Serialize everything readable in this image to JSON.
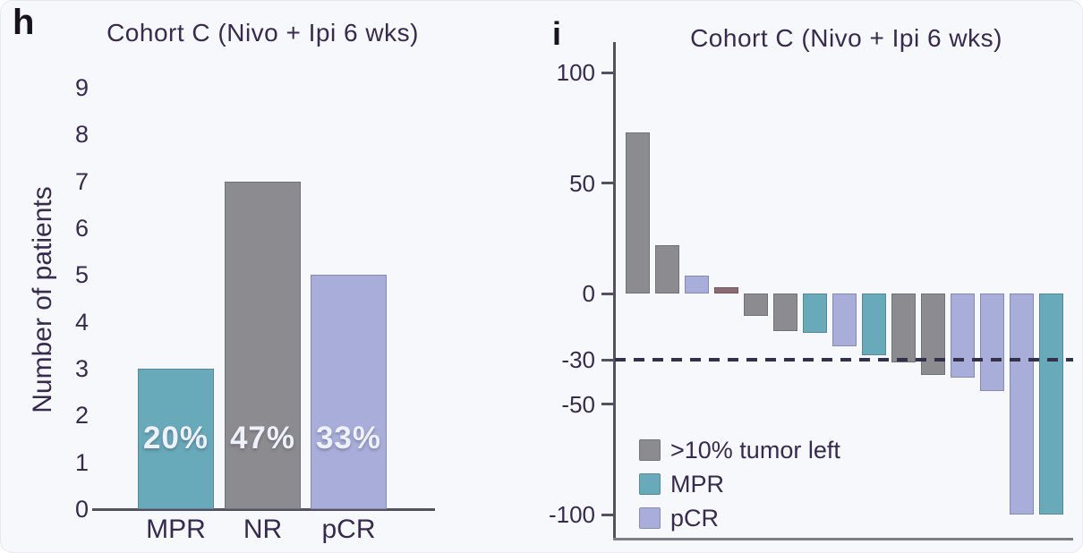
{
  "panels": {
    "h": {
      "letter": "h",
      "title": "Cohort C (Nivo + Ipi 6 wks)",
      "ylabel": "Number of patients"
    },
    "i": {
      "letter": "i",
      "title": "Cohort C (Nivo + Ipi 6 wks)"
    }
  },
  "colors": {
    "gray": "#8c8b90",
    "teal": "#68a9ba",
    "lavender": "#a8aed9",
    "mauve": "#8b6a72",
    "text_dark": "#372b4d",
    "axis": "#55505f",
    "dashed_line": "#333049",
    "percent_text": "#eef1f7",
    "background": "#f7f8fb"
  },
  "chart_data": [
    {
      "type": "bar",
      "panel": "h",
      "title": "Cohort C (Nivo + Ipi 6 wks)",
      "xlabel": "",
      "ylabel": "Number of patients",
      "categories": [
        "MPR",
        "NR",
        "pCR"
      ],
      "values": [
        3,
        7,
        5
      ],
      "bar_labels": [
        "20%",
        "47%",
        "33%"
      ],
      "bar_colors": [
        "#68a9ba",
        "#8c8b90",
        "#a8aed9"
      ],
      "yticks": [
        9,
        8,
        7,
        6,
        5,
        4,
        3,
        2,
        1,
        0
      ],
      "ylim": [
        0,
        9
      ],
      "grid": false,
      "legend_position": "none"
    },
    {
      "type": "bar",
      "subtype": "waterfall",
      "panel": "i",
      "title": "Cohort C (Nivo + Ipi 6 wks)",
      "xlabel": "",
      "ylabel": "",
      "values": [
        73,
        22,
        8,
        3,
        -10,
        -17,
        -18,
        -24,
        -28,
        -31,
        -37,
        -38,
        -44,
        -100,
        -100
      ],
      "bar_categories": [
        ">10% tumor left",
        ">10% tumor left",
        "pCR",
        null,
        ">10% tumor left",
        ">10% tumor left",
        "MPR",
        "pCR",
        "MPR",
        ">10% tumor left",
        ">10% tumor left",
        "pCR",
        "pCR",
        "pCR",
        "MPR"
      ],
      "bar_colors": [
        "#8c8b90",
        "#8c8b90",
        "#a8aed9",
        "#8b6a72",
        "#8c8b90",
        "#8c8b90",
        "#68a9ba",
        "#a8aed9",
        "#68a9ba",
        "#8c8b90",
        "#8c8b90",
        "#a8aed9",
        "#a8aed9",
        "#a8aed9",
        "#68a9ba"
      ],
      "yticks": [
        100,
        50,
        0,
        -30,
        -50,
        -100
      ],
      "ylim": [
        -100,
        112
      ],
      "reference_line": -30,
      "reference_line_style": "dashed",
      "grid": false,
      "legend_position": "lower-left",
      "legend": [
        {
          "label": ">10% tumor left",
          "color": "#8c8b90"
        },
        {
          "label": "MPR",
          "color": "#68a9ba"
        },
        {
          "label": "pCR",
          "color": "#a8aed9"
        }
      ]
    }
  ]
}
